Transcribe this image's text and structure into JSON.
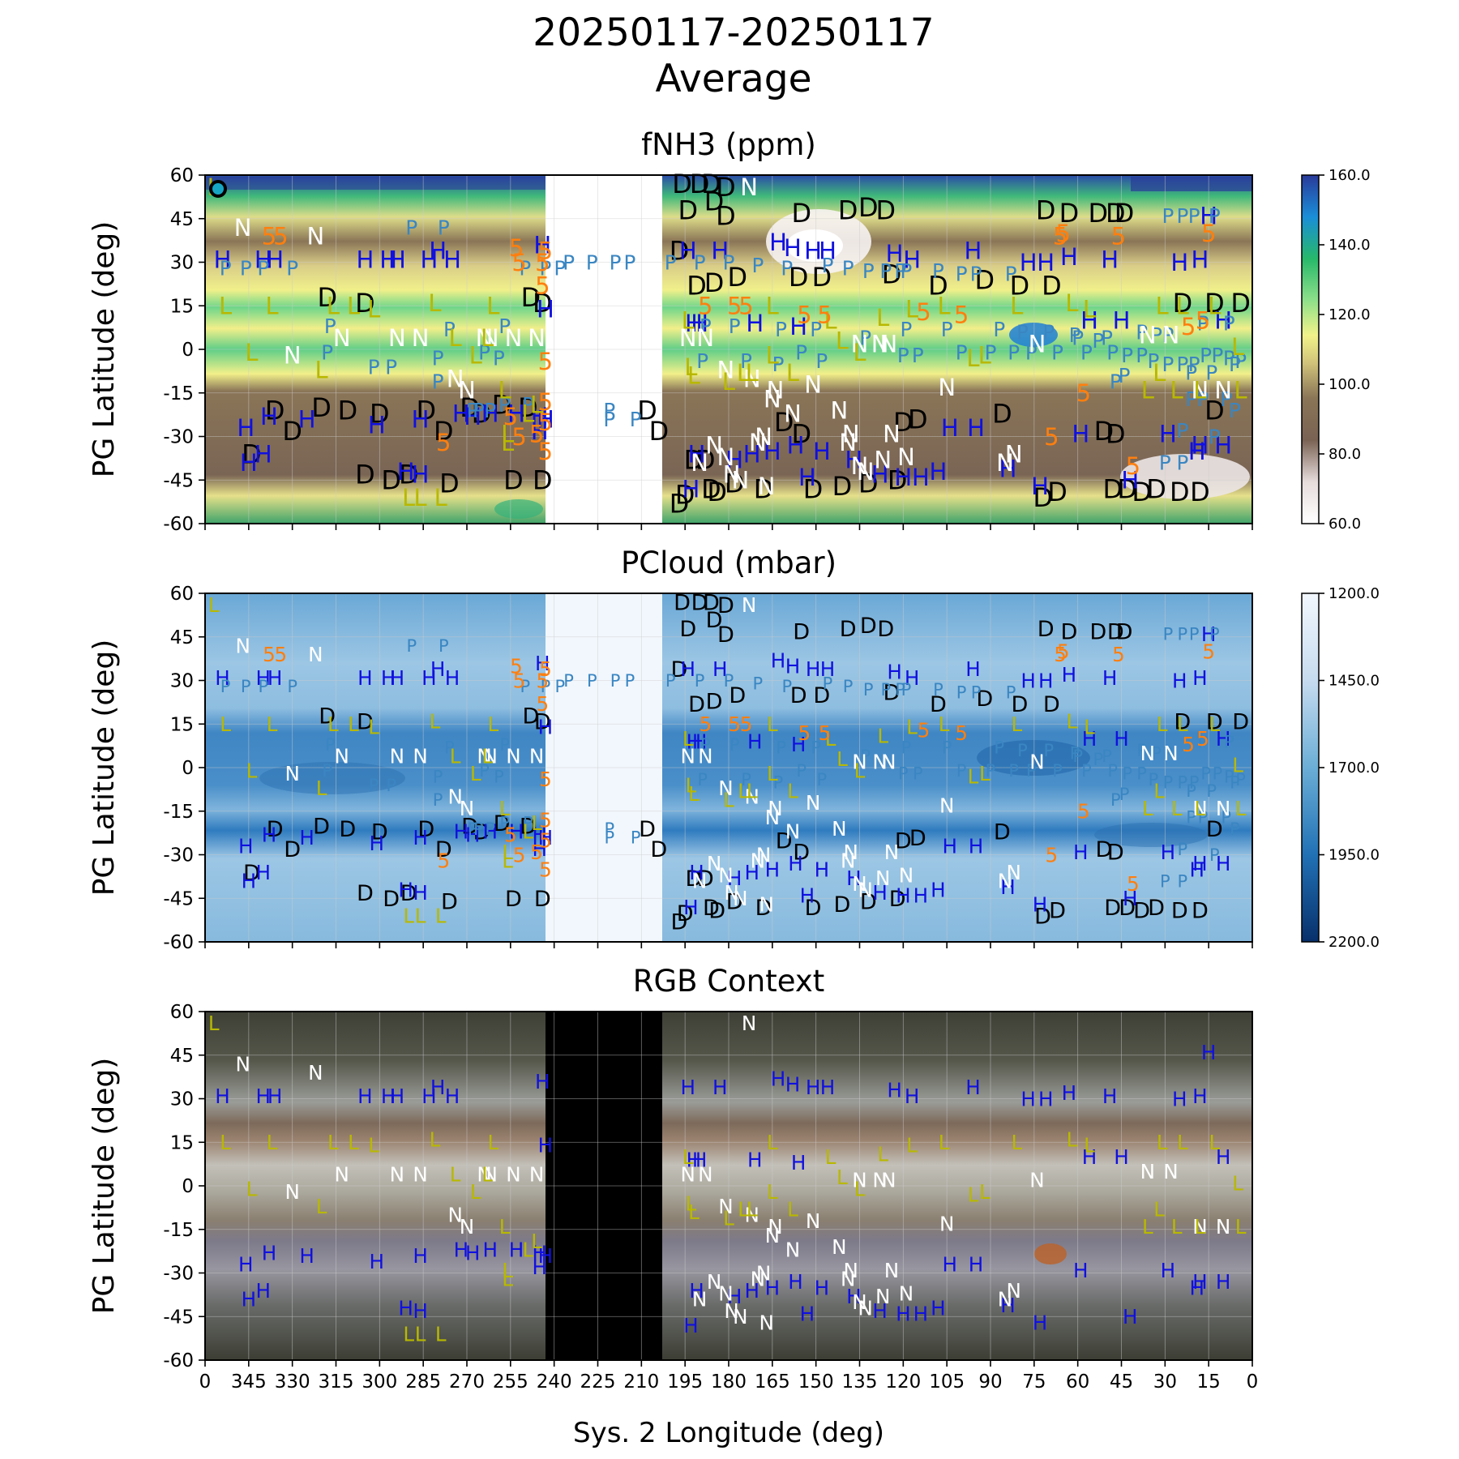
{
  "figure": {
    "title_line1": "20250117-20250117",
    "title_line2": "Average",
    "xlabel": "Sys. 2 Longitude (deg)",
    "ylabel": "PG Latitude (deg)"
  },
  "colors": {
    "fnh3_cmap": [
      "#ffffff",
      "#e6dcdc",
      "#7a6253",
      "#8a7557",
      "#d0c27a",
      "#f2f28a",
      "#8fe08a",
      "#27b86a",
      "#1a8ed8",
      "#2a3a9a"
    ],
    "pcloud_cmap": [
      "#f2f7fd",
      "#c6dbef",
      "#6baed6",
      "#2171b5",
      "#08306b"
    ],
    "feature_D": "#000000",
    "feature_H": "#1010e0",
    "feature_P": "#3a86c2",
    "feature_N": "#ffffff",
    "feature_L": "#b8b800",
    "feature_5": "#ff7f0e",
    "no_data_map": "#ffffff",
    "no_data_rgb": "#000000"
  },
  "chart_data": [
    {
      "type": "heatmap",
      "title": "fNH3 (ppm)",
      "xlabel": "",
      "ylabel": "PG Latitude (deg)",
      "xlim": [
        360,
        0
      ],
      "ylim": [
        -60,
        60
      ],
      "xticks": [
        360,
        345,
        330,
        315,
        300,
        285,
        270,
        255,
        240,
        225,
        210,
        195,
        180,
        165,
        150,
        135,
        120,
        105,
        90,
        75,
        60,
        45,
        30,
        15,
        0
      ],
      "yticks": [
        60,
        45,
        30,
        15,
        0,
        -15,
        -30,
        -45,
        -60
      ],
      "no_data_longitudes": [
        243,
        203
      ],
      "colorbar": {
        "min": 60.0,
        "max": 160.0,
        "ticks": [
          "160.0",
          "140.0",
          "120.0",
          "100.0",
          "80.0",
          "60.0"
        ]
      },
      "grid": true
    },
    {
      "type": "heatmap",
      "title": "PCloud (mbar)",
      "xlabel": "",
      "ylabel": "PG Latitude (deg)",
      "xlim": [
        360,
        0
      ],
      "ylim": [
        -60,
        60
      ],
      "yticks": [
        60,
        45,
        30,
        15,
        0,
        -15,
        -30,
        -45,
        -60
      ],
      "no_data_longitudes": [
        243,
        203
      ],
      "colorbar": {
        "min": 1200.0,
        "max": 2200.0,
        "ticks": [
          "1200.0",
          "1450.0",
          "1700.0",
          "1950.0",
          "2200.0"
        ]
      },
      "grid": true
    },
    {
      "type": "heatmap",
      "title": "RGB Context",
      "xlabel": "Sys. 2 Longitude (deg)",
      "ylabel": "PG Latitude (deg)",
      "xlim": [
        360,
        0
      ],
      "ylim": [
        -60,
        60
      ],
      "xtick_labels": [
        "0",
        "345",
        "330",
        "315",
        "300",
        "285",
        "270",
        "255",
        "240",
        "225",
        "210",
        "195",
        "180",
        "165",
        "150",
        "135",
        "120",
        "105",
        "90",
        "75",
        "60",
        "45",
        "30",
        "15",
        "0"
      ],
      "yticks": [
        60,
        45,
        30,
        15,
        0,
        -15,
        -30,
        -45,
        -60
      ],
      "no_data_longitudes": [
        243,
        203
      ],
      "grid": true
    }
  ],
  "features": {
    "D": [
      [
        344,
        -36
      ],
      [
        336,
        -21
      ],
      [
        330,
        -28
      ],
      [
        320,
        -20
      ],
      [
        311,
        -21
      ],
      [
        305,
        -43
      ],
      [
        300,
        -22
      ],
      [
        296,
        -45
      ],
      [
        290,
        -43
      ],
      [
        284,
        -21
      ],
      [
        278,
        -28
      ],
      [
        276,
        -46
      ],
      [
        269,
        -20
      ],
      [
        265,
        -22
      ],
      [
        254,
        -45
      ],
      [
        258,
        -19
      ],
      [
        244,
        -45
      ],
      [
        249,
        -20
      ],
      [
        208,
        -21
      ],
      [
        197,
        -53
      ],
      [
        195,
        -50
      ],
      [
        192,
        -38
      ],
      [
        188,
        -38
      ],
      [
        186,
        -48
      ],
      [
        184,
        -49
      ],
      [
        178,
        -46
      ],
      [
        168,
        -48
      ],
      [
        155,
        -29
      ],
      [
        151,
        -48
      ],
      [
        141,
        -47
      ],
      [
        132,
        -46
      ],
      [
        122,
        -45
      ],
      [
        120,
        -25
      ],
      [
        115,
        -24
      ],
      [
        86,
        -22
      ],
      [
        72,
        -51
      ],
      [
        67,
        -49
      ],
      [
        48,
        -48
      ],
      [
        43,
        -48
      ],
      [
        38,
        -49
      ],
      [
        33,
        -48
      ],
      [
        25,
        -49
      ],
      [
        18,
        -49
      ],
      [
        51,
        -28
      ],
      [
        47,
        -29
      ],
      [
        13,
        -21
      ],
      [
        204,
        -28
      ],
      [
        161,
        -25
      ],
      [
        305,
        16
      ],
      [
        318,
        18
      ],
      [
        244,
        16
      ],
      [
        248,
        18
      ],
      [
        197,
        34
      ],
      [
        191,
        22
      ],
      [
        185,
        23
      ],
      [
        177,
        25
      ],
      [
        156,
        25
      ],
      [
        148,
        25
      ],
      [
        124,
        26
      ],
      [
        108,
        22
      ],
      [
        92,
        24
      ],
      [
        80,
        22
      ],
      [
        69,
        22
      ],
      [
        71,
        48
      ],
      [
        63,
        47
      ],
      [
        53,
        47
      ],
      [
        47,
        47
      ],
      [
        44,
        47
      ],
      [
        24,
        16
      ],
      [
        13,
        16
      ],
      [
        4,
        16
      ],
      [
        196,
        57
      ],
      [
        190,
        57
      ],
      [
        186,
        57
      ],
      [
        181,
        56
      ],
      [
        185,
        51
      ],
      [
        194,
        48
      ],
      [
        181,
        46
      ],
      [
        155,
        47
      ],
      [
        139,
        48
      ],
      [
        132,
        49
      ],
      [
        126,
        48
      ]
    ],
    "H": [
      [
        354,
        31
      ],
      [
        340,
        31
      ],
      [
        336,
        31
      ],
      [
        305,
        31
      ],
      [
        297,
        31
      ],
      [
        294,
        31
      ],
      [
        283,
        31
      ],
      [
        280,
        34
      ],
      [
        275,
        31
      ],
      [
        244,
        36
      ],
      [
        243,
        14
      ],
      [
        243,
        -24
      ],
      [
        286,
        -24
      ],
      [
        325,
        -24
      ],
      [
        338,
        -23
      ],
      [
        346,
        -27
      ],
      [
        345,
        -39
      ],
      [
        340,
        -36
      ],
      [
        301,
        -26
      ],
      [
        291,
        -42
      ],
      [
        286,
        -43
      ],
      [
        272,
        -22
      ],
      [
        268,
        -23
      ],
      [
        262,
        -22
      ],
      [
        253,
        -22
      ],
      [
        245,
        -28
      ],
      [
        245,
        -23
      ],
      [
        193,
        -48
      ],
      [
        191,
        -36
      ],
      [
        178,
        -38
      ],
      [
        172,
        -36
      ],
      [
        165,
        -35
      ],
      [
        157,
        -33
      ],
      [
        153,
        -44
      ],
      [
        148,
        -35
      ],
      [
        137,
        -38
      ],
      [
        128,
        -43
      ],
      [
        120,
        -44
      ],
      [
        114,
        -44
      ],
      [
        108,
        -42
      ],
      [
        95,
        -27
      ],
      [
        104,
        -27
      ],
      [
        84,
        -41
      ],
      [
        73,
        -47
      ],
      [
        59,
        -29
      ],
      [
        42,
        -45
      ],
      [
        10,
        -33
      ],
      [
        29,
        -29
      ],
      [
        18,
        -33
      ],
      [
        19,
        -35
      ],
      [
        194,
        34
      ],
      [
        183,
        34
      ],
      [
        163,
        37
      ],
      [
        158,
        35
      ],
      [
        151,
        34
      ],
      [
        146,
        34
      ],
      [
        123,
        33
      ],
      [
        117,
        31
      ],
      [
        96,
        34
      ],
      [
        77,
        30
      ],
      [
        71,
        30
      ],
      [
        63,
        32
      ],
      [
        49,
        31
      ],
      [
        45,
        10
      ],
      [
        56,
        10
      ],
      [
        10,
        10
      ],
      [
        25,
        30
      ],
      [
        18,
        31
      ],
      [
        15,
        46
      ],
      [
        190,
        9
      ],
      [
        192,
        9
      ],
      [
        171,
        9
      ],
      [
        156,
        8
      ]
    ],
    "P": [
      [
        353,
        28
      ],
      [
        346,
        28
      ],
      [
        340,
        28
      ],
      [
        330,
        28
      ],
      [
        317,
        8
      ],
      [
        318,
        -1
      ],
      [
        302,
        -6
      ],
      [
        296,
        -6
      ],
      [
        280,
        -11
      ],
      [
        276,
        7
      ],
      [
        268,
        -21
      ],
      [
        266,
        -21
      ],
      [
        262,
        -21
      ],
      [
        259,
        -3
      ],
      [
        257,
        -19
      ],
      [
        249,
        -19
      ],
      [
        221,
        -21
      ],
      [
        212,
        -24
      ],
      [
        221,
        -24
      ],
      [
        280,
        -3
      ],
      [
        264,
        -1
      ],
      [
        257,
        8
      ],
      [
        250,
        28
      ],
      [
        243,
        28
      ],
      [
        238,
        28
      ],
      [
        235,
        30
      ],
      [
        227,
        30
      ],
      [
        219,
        30
      ],
      [
        214,
        30
      ],
      [
        200,
        30
      ],
      [
        190,
        30
      ],
      [
        180,
        30
      ],
      [
        170,
        29
      ],
      [
        160,
        28
      ],
      [
        146,
        29
      ],
      [
        139,
        28
      ],
      [
        132,
        27
      ],
      [
        126,
        27
      ],
      [
        121,
        27
      ],
      [
        119,
        27
      ],
      [
        108,
        27
      ],
      [
        100,
        26
      ],
      [
        95,
        26
      ],
      [
        83,
        26
      ],
      [
        61,
        5
      ],
      [
        53,
        3
      ],
      [
        47,
        -11
      ],
      [
        44,
        -9
      ],
      [
        21,
        -17
      ],
      [
        21,
        -8
      ],
      [
        14,
        -8
      ],
      [
        9,
        -17
      ],
      [
        17,
        -17
      ],
      [
        24,
        -28
      ],
      [
        30,
        -39
      ],
      [
        24,
        -39
      ],
      [
        13,
        -30
      ],
      [
        6,
        -21
      ],
      [
        6,
        -5
      ],
      [
        8,
        9
      ],
      [
        17,
        9
      ],
      [
        29,
        5
      ],
      [
        33,
        5
      ],
      [
        38,
        6
      ],
      [
        50,
        4
      ],
      [
        60,
        4
      ],
      [
        70,
        6
      ],
      [
        79,
        6
      ],
      [
        87,
        7
      ],
      [
        105,
        7
      ],
      [
        119,
        7
      ],
      [
        133,
        4
      ],
      [
        150,
        7
      ],
      [
        162,
        7
      ],
      [
        178,
        8
      ],
      [
        188,
        8
      ],
      [
        189,
        -4
      ],
      [
        174,
        -4
      ],
      [
        163,
        -5
      ],
      [
        155,
        -1
      ],
      [
        148,
        -4
      ],
      [
        120,
        -2
      ],
      [
        115,
        -2
      ],
      [
        100,
        -1
      ],
      [
        90,
        -1
      ],
      [
        82,
        -1
      ],
      [
        76,
        -1
      ],
      [
        67,
        -1
      ],
      [
        57,
        -1
      ],
      [
        48,
        -1
      ],
      [
        43,
        -2
      ],
      [
        38,
        -2
      ],
      [
        34,
        -4
      ],
      [
        29,
        -5
      ],
      [
        24,
        -5
      ],
      [
        20,
        -5
      ],
      [
        16,
        -2
      ],
      [
        12,
        -2
      ],
      [
        8,
        -3
      ],
      [
        4,
        -4
      ],
      [
        29,
        46
      ],
      [
        24,
        46
      ],
      [
        20,
        46
      ],
      [
        13,
        46
      ],
      [
        289,
        42
      ],
      [
        278,
        42
      ]
    ],
    "N": [
      [
        347,
        42
      ],
      [
        322,
        39
      ],
      [
        286,
        4
      ],
      [
        294,
        4
      ],
      [
        274,
        -10
      ],
      [
        270,
        -14
      ],
      [
        264,
        4
      ],
      [
        262,
        4
      ],
      [
        254,
        4
      ],
      [
        246,
        4
      ],
      [
        313,
        4
      ],
      [
        330,
        -2
      ],
      [
        194,
        4
      ],
      [
        188,
        4
      ],
      [
        181,
        -7
      ],
      [
        172,
        -10
      ],
      [
        164,
        -14
      ],
      [
        165,
        -17
      ],
      [
        158,
        -22
      ],
      [
        151,
        -12
      ],
      [
        142,
        -21
      ],
      [
        139,
        -32
      ],
      [
        138,
        -29
      ],
      [
        135,
        -40
      ],
      [
        133,
        -42
      ],
      [
        127,
        -38
      ],
      [
        119,
        -37
      ],
      [
        124,
        -29
      ],
      [
        105,
        -13
      ],
      [
        85,
        -39
      ],
      [
        82,
        -36
      ],
      [
        74,
        2
      ],
      [
        36,
        5
      ],
      [
        28,
        5
      ],
      [
        18,
        -14
      ],
      [
        10,
        -14
      ],
      [
        190,
        -39
      ],
      [
        185,
        -33
      ],
      [
        181,
        -37
      ],
      [
        179,
        -43
      ],
      [
        176,
        -45
      ],
      [
        170,
        -32
      ],
      [
        168,
        -30
      ],
      [
        167,
        -47
      ],
      [
        173,
        56
      ],
      [
        135,
        2
      ],
      [
        128,
        2
      ],
      [
        125,
        2
      ]
    ],
    "L": [
      [
        357,
        56
      ],
      [
        353,
        15
      ],
      [
        344,
        -1
      ],
      [
        337,
        15
      ],
      [
        320,
        -7
      ],
      [
        316,
        15
      ],
      [
        309,
        15
      ],
      [
        302,
        14
      ],
      [
        290,
        -51
      ],
      [
        286,
        -51
      ],
      [
        281,
        16
      ],
      [
        279,
        -51
      ],
      [
        274,
        4
      ],
      [
        267,
        -2
      ],
      [
        263,
        4
      ],
      [
        261,
        15
      ],
      [
        257,
        -14
      ],
      [
        256,
        -29
      ],
      [
        256,
        -32
      ],
      [
        246,
        -19
      ],
      [
        249,
        -22
      ],
      [
        194,
        10
      ],
      [
        193,
        -6
      ],
      [
        192,
        -9
      ],
      [
        180,
        -11
      ],
      [
        175,
        -8
      ],
      [
        172,
        -8
      ],
      [
        165,
        15
      ],
      [
        165,
        -2
      ],
      [
        158,
        -8
      ],
      [
        145,
        10
      ],
      [
        141,
        3
      ],
      [
        135,
        -1
      ],
      [
        127,
        11
      ],
      [
        117,
        14
      ],
      [
        106,
        15
      ],
      [
        96,
        -3
      ],
      [
        92,
        -2
      ],
      [
        81,
        15
      ],
      [
        62,
        16
      ],
      [
        56,
        14
      ],
      [
        36,
        -14
      ],
      [
        32,
        -8
      ],
      [
        26,
        -14
      ],
      [
        18,
        -14
      ],
      [
        13,
        15
      ],
      [
        5,
        1
      ],
      [
        4,
        -14
      ],
      [
        24,
        15
      ],
      [
        31,
        15
      ]
    ],
    "5": [
      [
        338,
        39
      ],
      [
        334,
        39
      ],
      [
        253,
        35
      ],
      [
        252,
        30
      ],
      [
        243,
        34
      ],
      [
        244,
        30
      ],
      [
        244,
        22
      ],
      [
        243,
        -4
      ],
      [
        243,
        -18
      ],
      [
        243,
        -25
      ],
      [
        243,
        -35
      ],
      [
        252,
        -30
      ],
      [
        246,
        -29
      ],
      [
        278,
        -32
      ],
      [
        255,
        -23
      ],
      [
        188,
        15
      ],
      [
        178,
        15
      ],
      [
        174,
        15
      ],
      [
        154,
        12
      ],
      [
        147,
        12
      ],
      [
        113,
        13
      ],
      [
        100,
        12
      ],
      [
        69,
        -30
      ],
      [
        66,
        39
      ],
      [
        65,
        40
      ],
      [
        58,
        -15
      ],
      [
        46,
        39
      ],
      [
        41,
        -40
      ],
      [
        17,
        10
      ],
      [
        15,
        40
      ],
      [
        22,
        8
      ]
    ]
  }
}
